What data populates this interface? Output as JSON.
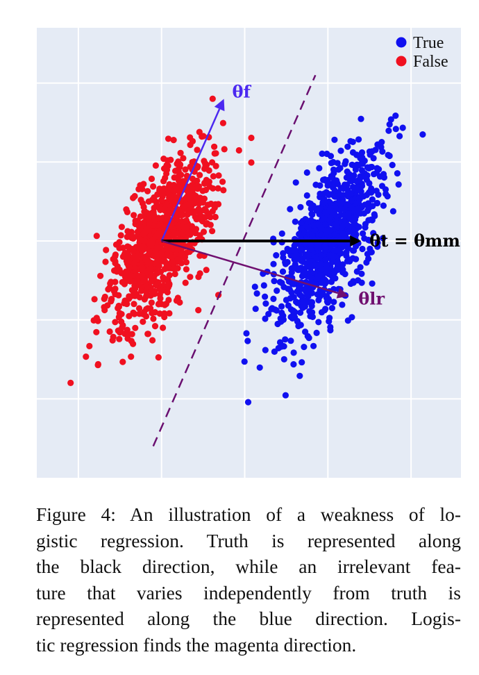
{
  "chart_data": {
    "type": "scatter",
    "title": "",
    "xlabel": "",
    "ylabel": "",
    "grid": true,
    "legend_position": "top-right",
    "legend": [
      {
        "label": "True",
        "color": "#1010f0"
      },
      {
        "label": "False",
        "color": "#f01020"
      }
    ],
    "series": [
      {
        "name": "True",
        "color": "#1010f0",
        "center": [
          4.0,
          0.0
        ],
        "spread_along_axis": 1.2,
        "spread_across_axis": 0.45,
        "axis_direction": [
          0.45,
          1.0
        ],
        "n_points": 900
      },
      {
        "name": "False",
        "color": "#f01020",
        "center": [
          0.0,
          0.0
        ],
        "spread_along_axis": 1.2,
        "spread_across_axis": 0.45,
        "axis_direction": [
          0.45,
          1.0
        ],
        "n_points": 900
      }
    ],
    "arrows": [
      {
        "label": "θf",
        "color": "#4b28f0",
        "from": [
          0.0,
          0.0
        ],
        "to": [
          1.5,
          3.6
        ]
      },
      {
        "label": "θt = θmm",
        "color": "#000000",
        "from": [
          0.0,
          0.0
        ],
        "to": [
          4.8,
          0.0
        ]
      },
      {
        "label": "θlr",
        "color": "#701070",
        "from": [
          0.0,
          0.0
        ],
        "to": [
          4.5,
          -1.4
        ]
      }
    ],
    "decision_boundary": {
      "style": "dashed",
      "color": "#6a0f70",
      "from": [
        -0.2,
        -5.2
      ],
      "to": [
        3.7,
        4.2
      ]
    },
    "xlim": [
      -3.0,
      7.2
    ],
    "ylim": [
      -6.0,
      5.4
    ]
  },
  "caption": {
    "lines": [
      "Figure 4: An illustration of a weakness of lo-",
      "gistic regression.  Truth is represented along",
      "the black direction, while an irrelevant fea-",
      "ture that varies independently from truth is",
      "represented along the blue direction.  Logis-",
      "tic regression finds the magenta direction."
    ]
  }
}
